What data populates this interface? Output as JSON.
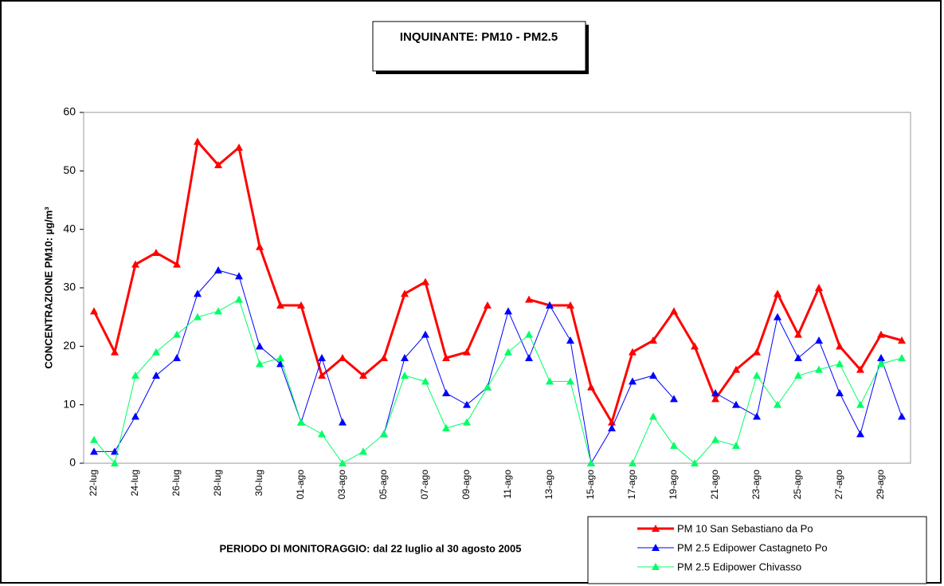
{
  "chart_data": {
    "type": "line",
    "title": "INQUINANTE: PM10 - PM2.5",
    "subtitle": "PERIODO DI MONITORAGGIO: dal 22 luglio al 30 agosto 2005",
    "y_label": "CONCENTRAZIONE PM10: µg/m³",
    "categories": [
      "22-lug",
      null,
      "24-lug",
      null,
      "26-lug",
      null,
      "28-lug",
      null,
      "30-lug",
      null,
      "01-ago",
      null,
      "03-ago",
      null,
      "05-ago",
      null,
      "07-ago",
      null,
      "09-ago",
      null,
      "11-ago",
      null,
      "13-ago",
      null,
      "15-ago",
      null,
      "17-ago",
      null,
      "19-ago",
      null,
      "21-ago",
      null,
      "23-ago",
      null,
      "25-ago",
      null,
      "27-ago",
      null,
      "29-ago",
      null
    ],
    "series": [
      {
        "name": "PM 10 San Sebastiano da Po",
        "color": "#ff0000",
        "line_width": 3,
        "values": [
          26,
          19,
          34,
          36,
          34,
          55,
          51,
          54,
          37,
          27,
          27,
          15,
          18,
          15,
          18,
          29,
          31,
          18,
          19,
          27,
          null,
          28,
          27,
          27,
          13,
          7,
          19,
          21,
          26,
          20,
          11,
          16,
          19,
          29,
          22,
          30,
          20,
          16,
          22,
          21
        ]
      },
      {
        "name": "PM 2.5 Edipower Castagneto Po",
        "color": "#0000ff",
        "line_width": 1,
        "values": [
          2,
          2,
          8,
          15,
          18,
          29,
          33,
          32,
          20,
          17,
          7,
          18,
          7,
          null,
          5,
          18,
          22,
          12,
          10,
          13,
          26,
          18,
          27,
          21,
          0,
          6,
          14,
          15,
          11,
          null,
          12,
          10,
          8,
          25,
          18,
          21,
          12,
          5,
          18,
          8
        ]
      },
      {
        "name": "PM 2.5 Edipower Chivasso",
        "color": "#00ff66",
        "line_width": 1,
        "values": [
          4,
          0,
          15,
          19,
          22,
          25,
          26,
          28,
          17,
          18,
          7,
          5,
          0,
          2,
          5,
          15,
          14,
          6,
          7,
          13,
          19,
          22,
          14,
          14,
          0,
          null,
          0,
          8,
          3,
          0,
          4,
          3,
          15,
          10,
          15,
          16,
          17,
          10,
          17,
          18
        ]
      }
    ],
    "ylim": [
      0,
      60
    ],
    "yticks": [
      0,
      10,
      20,
      30,
      40,
      50,
      60
    ],
    "grid": false
  }
}
